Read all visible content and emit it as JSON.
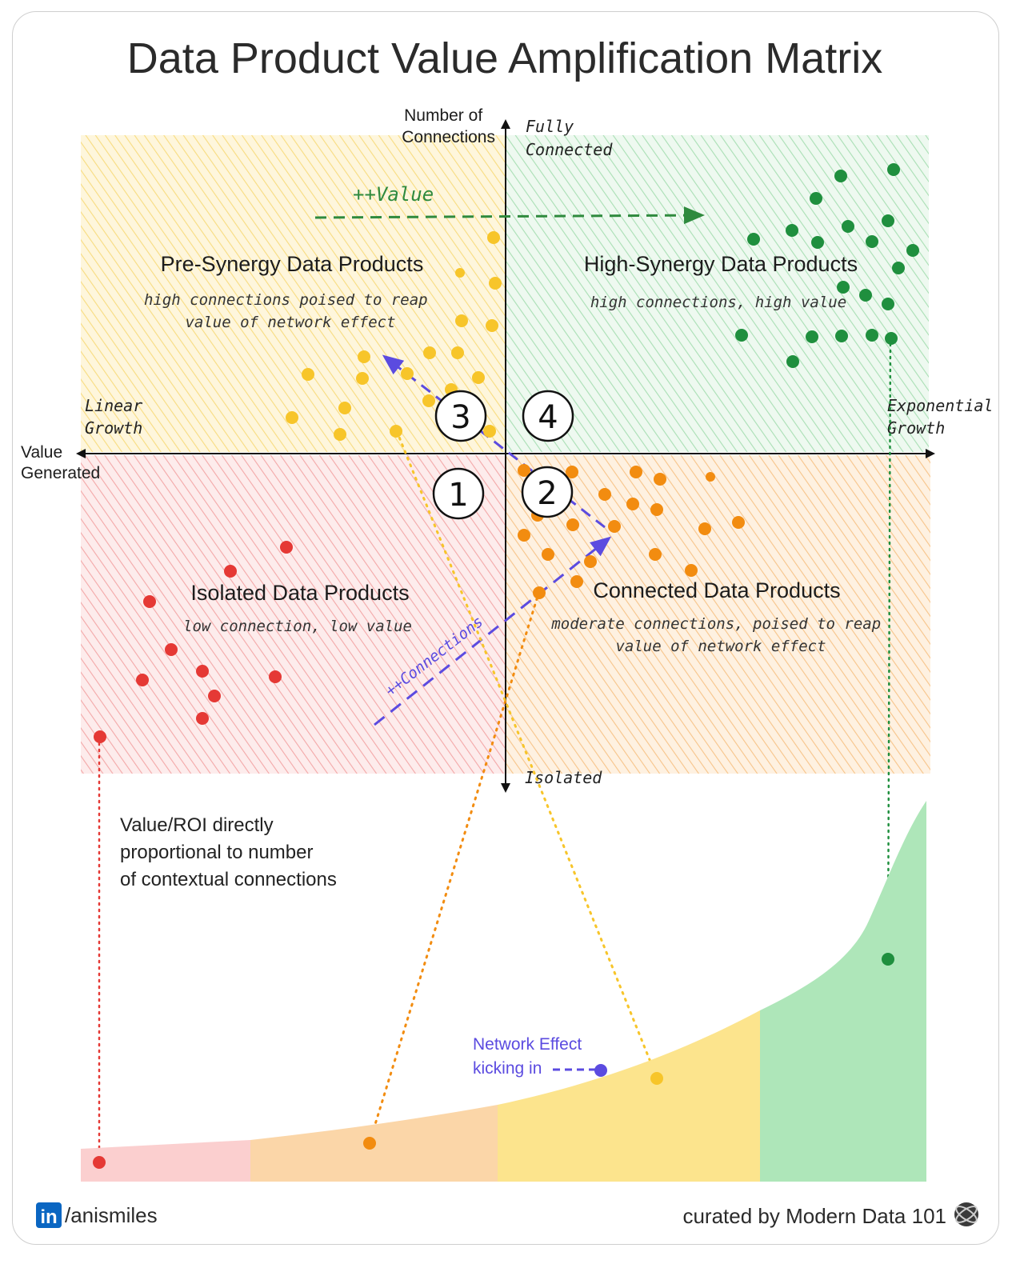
{
  "title": "Data Product Value Amplification Matrix",
  "axes": {
    "y_label": [
      "Number of",
      "Connections"
    ],
    "y_top": [
      "Fully",
      "Connected"
    ],
    "y_bottom": "Isolated",
    "x_label": [
      "Value",
      "Generated"
    ],
    "x_left": [
      "Linear",
      "Growth"
    ],
    "x_right": [
      "Exponential",
      "Growth"
    ]
  },
  "arrows": {
    "value_label": "++Value",
    "connections_label": "++Connections"
  },
  "quadrants": [
    {
      "number": "1",
      "title": "Isolated Data Products",
      "subtitle": [
        "low connection, low value"
      ],
      "color": "#e53935"
    },
    {
      "number": "2",
      "title": "Connected Data Products",
      "subtitle": [
        "moderate connections, poised to reap",
        "value of network effect"
      ],
      "color": "#f28c10"
    },
    {
      "number": "3",
      "title": "Pre-Synergy Data Products",
      "subtitle": [
        "high connections poised to reap",
        "value of network effect"
      ],
      "color": "#f7c52a"
    },
    {
      "number": "4",
      "title": "High-Synergy Data Products",
      "subtitle": [
        "high connections, high value"
      ],
      "color": "#1f8f3e"
    }
  ],
  "note": [
    "Value/ROI directly",
    "proportional to number",
    "of contextual connections"
  ],
  "network_effect": [
    "Network Effect",
    "kicking in"
  ],
  "colors": {
    "isolated_bg": "#fbd6d6",
    "connected_bg": "#fde1bf",
    "presynergy_bg": "#fdebb0",
    "highsynergy_bg": "#cfeed6",
    "accent_purple": "#5b4be0",
    "curve_red": "#fbcfcf",
    "curve_orange": "#fbd6a8",
    "curve_yellow": "#fce48d",
    "curve_green": "#aee6b9"
  },
  "footer": {
    "linkedin_badge": "in",
    "handle": "/anismiles",
    "credit": "curated by Modern Data 101"
  }
}
